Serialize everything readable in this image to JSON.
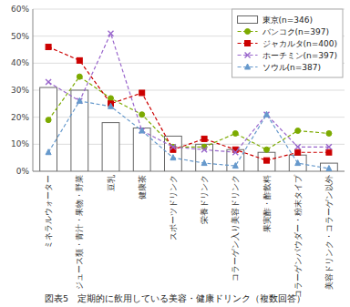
{
  "chart_data": {
    "type": "bar",
    "title": "図表5　定期的に飲用している美容・健康ドリンク（複数回答）",
    "categories": [
      "ミネラルウォーター",
      "ジュース類・青汁・果物・野菜",
      "豆乳",
      "健康茶",
      "スポーツドリンク",
      "栄養ドリンク",
      "コラーゲン入り美容ドリンク",
      "果実酢・酢飲料",
      "コラーゲンパウダー・粉末タイプ",
      "美容ドリンク・コラーゲン以外"
    ],
    "series": [
      {
        "name": "東京(n=346)",
        "type": "bar",
        "color": "#ffffff",
        "values": [
          31,
          30,
          18,
          16,
          13,
          10,
          8,
          7,
          6,
          3
        ]
      },
      {
        "name": "バンコク(n=397)",
        "type": "line",
        "color": "#7caa00",
        "marker": "circle",
        "line_style": "dashed",
        "values": [
          19,
          35,
          27,
          21,
          9,
          9,
          14,
          8,
          15,
          14
        ]
      },
      {
        "name": "ジャカルタ(n=400)",
        "type": "line",
        "color": "#cc0000",
        "marker": "square",
        "line_style": "dashed",
        "values": [
          46,
          41,
          25,
          29,
          8,
          12,
          8,
          4,
          7,
          7
        ]
      },
      {
        "name": "ホーチミン(n=397)",
        "type": "line",
        "color": "#9966cc",
        "marker": "x",
        "line_style": "dashed",
        "values": [
          33,
          26,
          51,
          15,
          9,
          8,
          7,
          21,
          9,
          9
        ]
      },
      {
        "name": "ソウル(n=387)",
        "type": "line",
        "color": "#6699cc",
        "marker": "triangle",
        "line_style": "dashed",
        "values": [
          7,
          26,
          24,
          15,
          5,
          3,
          2,
          21,
          3,
          1
        ]
      }
    ],
    "ylim": [
      0,
      60
    ],
    "yticks": [
      {
        "value": 0,
        "label": "0%"
      },
      {
        "value": 10,
        "label": "10%"
      },
      {
        "value": 20,
        "label": "20%"
      },
      {
        "value": 30,
        "label": "30%"
      },
      {
        "value": 40,
        "label": "40%"
      },
      {
        "value": 50,
        "label": "50%"
      },
      {
        "value": 60,
        "label": "60%"
      }
    ],
    "grid": true,
    "legend": "upper right"
  }
}
